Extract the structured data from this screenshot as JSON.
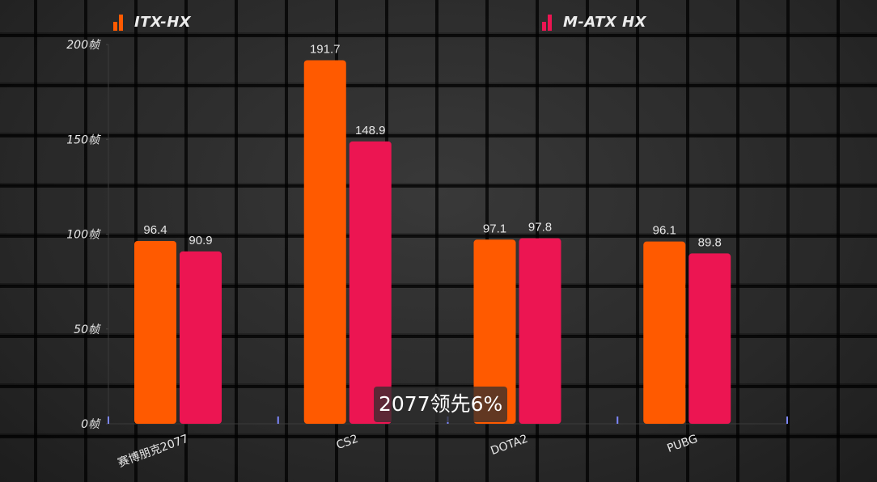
{
  "chart_data": {
    "type": "bar",
    "categories": [
      "赛博朋克2077",
      "CS2",
      "DOTA2",
      "PUBG"
    ],
    "series": [
      {
        "name": "ITX-HX",
        "color": "#ff5a00",
        "values": [
          96.4,
          191.7,
          97.1,
          96.1
        ]
      },
      {
        "name": "M-ATX HX",
        "color": "#ec1552",
        "values": [
          90.9,
          148.9,
          97.8,
          89.8
        ]
      }
    ],
    "y_ticks": [
      {
        "value": 0,
        "label": "0帧"
      },
      {
        "value": 50,
        "label": "50帧"
      },
      {
        "value": 100,
        "label": "100帧"
      },
      {
        "value": 150,
        "label": "150帧"
      },
      {
        "value": 200,
        "label": "200帧"
      }
    ],
    "ylim": [
      0,
      200
    ],
    "legend_position": "top",
    "grid": false
  },
  "legend": {
    "items": [
      {
        "label": "ITX-HX",
        "color": "#ff5a00"
      },
      {
        "label": "M-ATX HX",
        "color": "#ec1552"
      }
    ]
  },
  "caption": {
    "text": "2077领先6%"
  }
}
